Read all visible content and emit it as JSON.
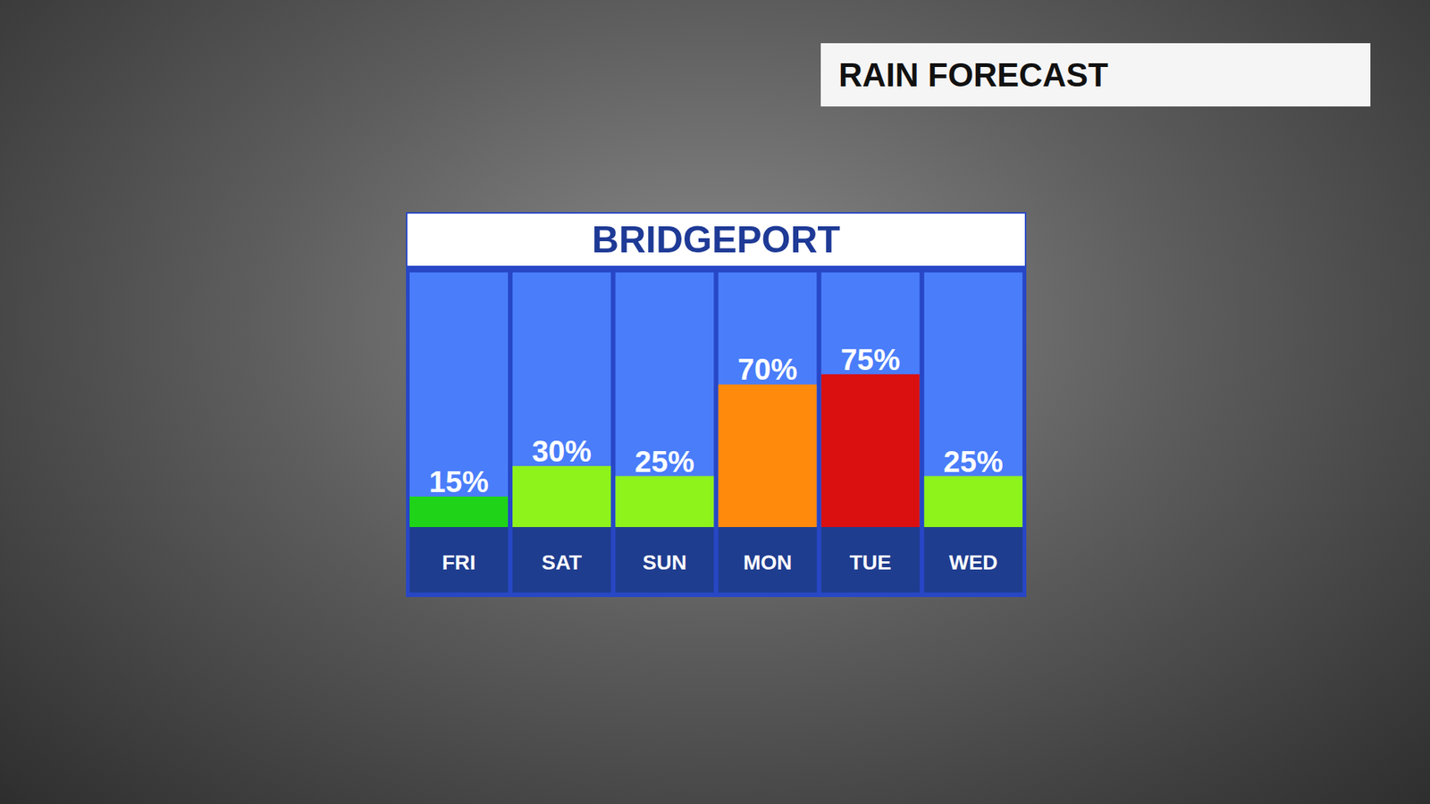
{
  "chart_data": {
    "type": "bar",
    "title": "BRIDGEPORT",
    "subtitle": "RAIN FORECAST",
    "categories": [
      "FRI",
      "SAT",
      "SUN",
      "MON",
      "TUE",
      "WED"
    ],
    "values": [
      15,
      30,
      25,
      70,
      75,
      25
    ],
    "value_labels": [
      "15%",
      "30%",
      "25%",
      "70%",
      "75%",
      "25%"
    ],
    "colors": [
      "#1fd418",
      "#8ef21b",
      "#8ef21b",
      "#ff8a0c",
      "#d90f10",
      "#8ef21b"
    ],
    "ylim": [
      0,
      125
    ],
    "tick_labels": "x",
    "data_labels": true,
    "grid": false
  }
}
